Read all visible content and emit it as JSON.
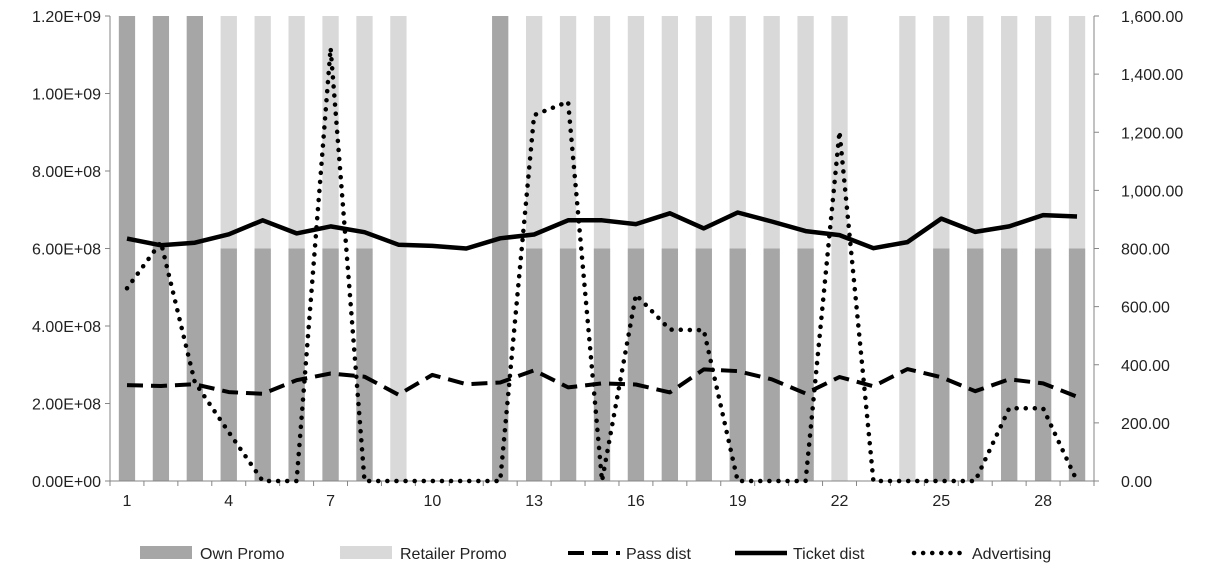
{
  "chart_data": {
    "type": "bar",
    "x": [
      1,
      2,
      3,
      4,
      5,
      6,
      7,
      8,
      9,
      10,
      11,
      12,
      13,
      14,
      15,
      16,
      17,
      18,
      19,
      20,
      21,
      22,
      23,
      24,
      25,
      26,
      27,
      28,
      29
    ],
    "x_tick_labels": [
      "1",
      "4",
      "7",
      "10",
      "13",
      "16",
      "19",
      "22",
      "25",
      "28"
    ],
    "x_tick_values": [
      1,
      4,
      7,
      10,
      13,
      16,
      19,
      22,
      25,
      28
    ],
    "y_left_ticks": [
      "0.00E+00",
      "2.00E+08",
      "4.00E+08",
      "6.00E+08",
      "8.00E+08",
      "1.00E+09",
      "1.20E+09"
    ],
    "y_right_ticks": [
      "0.00",
      "200.00",
      "400.00",
      "600.00",
      "800.00",
      "1,000.00",
      "1,200.00",
      "1,400.00",
      "1,600.00"
    ],
    "ylim_left": [
      0,
      1200000000
    ],
    "ylim_right": [
      0,
      1600
    ],
    "bar_colors": {
      "own": "#a6a6a6",
      "retailer": "#d9d9d9"
    },
    "series": [
      {
        "name": "Own Promo",
        "kind": "bar",
        "axis": "left",
        "values": [
          1200000000,
          1200000000,
          1200000000,
          600000000,
          600000000,
          600000000,
          600000000,
          600000000,
          0,
          0,
          0,
          1200000000,
          600000000,
          600000000,
          600000000,
          600000000,
          600000000,
          600000000,
          600000000,
          600000000,
          600000000,
          0,
          0,
          0,
          600000000,
          600000000,
          600000000,
          600000000,
          600000000
        ]
      },
      {
        "name": "Retailer Promo",
        "kind": "bar",
        "axis": "left",
        "values": [
          0,
          0,
          0,
          1200000000,
          1200000000,
          1200000000,
          1200000000,
          1200000000,
          1200000000,
          0,
          0,
          0,
          1200000000,
          1200000000,
          1200000000,
          1200000000,
          1200000000,
          1200000000,
          1200000000,
          1200000000,
          1200000000,
          1200000000,
          0,
          1200000000,
          1200000000,
          1200000000,
          1200000000,
          1200000000,
          1200000000
        ]
      },
      {
        "name": "Pass dist",
        "kind": "line",
        "style": "dashed",
        "axis": "right",
        "values": [
          330,
          327,
          333,
          306,
          300,
          347,
          370,
          359,
          297,
          365,
          333,
          339,
          381,
          322,
          336,
          332,
          305,
          384,
          378,
          350,
          301,
          358,
          326,
          385,
          357,
          309,
          350,
          336,
          290
        ]
      },
      {
        "name": "Ticket dist",
        "kind": "line",
        "style": "solid",
        "axis": "right",
        "values": [
          834,
          811,
          820,
          849,
          897,
          852,
          876,
          856,
          813,
          809,
          800,
          835,
          848,
          897,
          897,
          884,
          921,
          869,
          924,
          893,
          860,
          846,
          801,
          822,
          903,
          857,
          876,
          915,
          910
        ]
      },
      {
        "name": "Advertising",
        "kind": "line",
        "style": "dotted",
        "axis": "right",
        "values": [
          663,
          822,
          340,
          168,
          0,
          0,
          1490,
          0,
          0,
          0,
          0,
          0,
          1259,
          1305,
          0,
          641,
          521,
          519,
          0,
          0,
          0,
          1203,
          0,
          0,
          0,
          0,
          250,
          250,
          0
        ]
      }
    ],
    "legend": [
      "Own Promo",
      "Retailer Promo",
      "Pass dist",
      "Ticket dist",
      "Advertising"
    ],
    "legend_position": "bottom",
    "grid": false
  }
}
